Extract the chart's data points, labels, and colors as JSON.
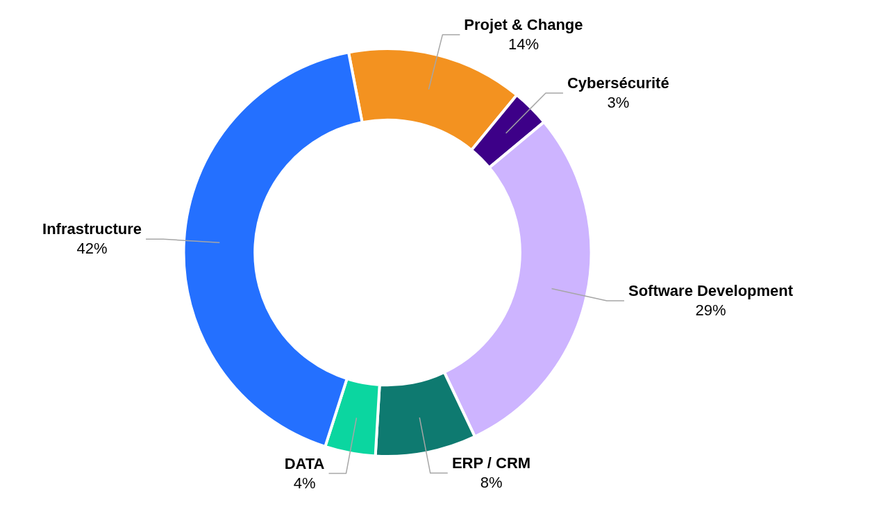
{
  "chart_data": {
    "type": "donut",
    "categories": [
      "Projet & Change",
      "Cybersécurité",
      "Software Development",
      "ERP / CRM",
      "DATA",
      "Infrastructure"
    ],
    "values": [
      14,
      3,
      29,
      8,
      4,
      42
    ],
    "value_labels": [
      "14%",
      "3%",
      "29%",
      "8%",
      "4%",
      "42%"
    ],
    "colors": [
      "#f39220",
      "#3d0088",
      "#cdb4ff",
      "#0e7a70",
      "#0bd6a0",
      "#2470ff"
    ],
    "legend": false
  }
}
